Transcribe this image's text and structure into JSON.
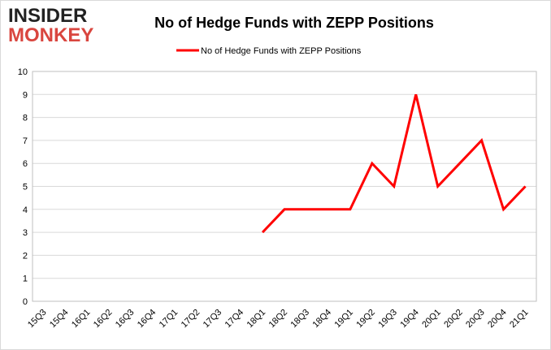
{
  "logo": {
    "line1": "INSIDER",
    "line2": "MONKEY"
  },
  "chart_data": {
    "type": "line",
    "title": "No of Hedge Funds with ZEPP Positions",
    "categories": [
      "15Q3",
      "15Q4",
      "16Q1",
      "16Q2",
      "16Q3",
      "16Q4",
      "17Q1",
      "17Q2",
      "17Q3",
      "17Q4",
      "18Q1",
      "18Q2",
      "18Q3",
      "18Q4",
      "19Q1",
      "19Q2",
      "19Q3",
      "19Q4",
      "20Q1",
      "20Q2",
      "20Q3",
      "20Q4",
      "21Q1"
    ],
    "series": [
      {
        "name": "No of Hedge Funds with ZEPP Positions",
        "color": "#ff0000",
        "values": [
          null,
          null,
          null,
          null,
          null,
          null,
          null,
          null,
          null,
          null,
          3,
          4,
          4,
          4,
          4,
          6,
          5,
          9,
          5,
          6,
          7,
          4,
          5
        ]
      }
    ],
    "ylim": [
      0,
      10
    ],
    "yticks": [
      0,
      1,
      2,
      3,
      4,
      5,
      6,
      7,
      8,
      9,
      10
    ],
    "grid": true,
    "legend": "top"
  }
}
